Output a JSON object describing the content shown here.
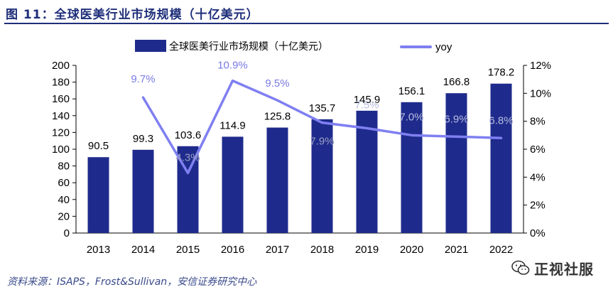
{
  "figure": {
    "title": "图 11：全球医美行业市场规模（十亿美元）",
    "source": "资料来源：ISAPS，Frost&Sullivan，安信证券研究中心",
    "watermark": "正视社服"
  },
  "colors": {
    "bar": "#1f2b8c",
    "line": "#7f7ff2",
    "title": "#1f2f7a",
    "axis": "#000000"
  },
  "chart_data": {
    "type": "bar",
    "title": "",
    "categories": [
      "2013",
      "2014",
      "2015",
      "2016",
      "2017",
      "2018",
      "2019",
      "2020",
      "2021",
      "2022"
    ],
    "xlabel": "",
    "ylabel": "",
    "ylim": [
      0,
      200
    ],
    "yticks": [
      "0",
      "20",
      "40",
      "60",
      "80",
      "100",
      "120",
      "140",
      "160",
      "180",
      "200"
    ],
    "y2lim": [
      0,
      12
    ],
    "y2ticks": [
      "0%",
      "2%",
      "4%",
      "6%",
      "8%",
      "10%",
      "12%"
    ],
    "grid": false,
    "legend_position": "top",
    "series": [
      {
        "name": "全球医美行业市场规模（十亿美元）",
        "type": "bar",
        "axis": "left",
        "values": [
          90.5,
          99.3,
          103.6,
          114.9,
          125.8,
          135.7,
          145.9,
          156.1,
          166.8,
          178.2
        ],
        "labels": [
          "90.5",
          "99.3",
          "103.6",
          "114.9",
          "125.8",
          "135.7",
          "145.9",
          "156.1",
          "166.8",
          "178.2"
        ]
      },
      {
        "name": "yoy",
        "type": "line",
        "axis": "right",
        "x": [
          "2014",
          "2015",
          "2016",
          "2017",
          "2018",
          "2019",
          "2020",
          "2021",
          "2022"
        ],
        "values": [
          9.7,
          4.3,
          10.9,
          9.5,
          7.9,
          7.5,
          7.0,
          6.9,
          6.8
        ],
        "labels": [
          "9.7%",
          "4.3%",
          "10.9%",
          "9.5%",
          "7.9%",
          "7.5%",
          "7.0%",
          "6.9%",
          "6.8%"
        ]
      }
    ]
  }
}
